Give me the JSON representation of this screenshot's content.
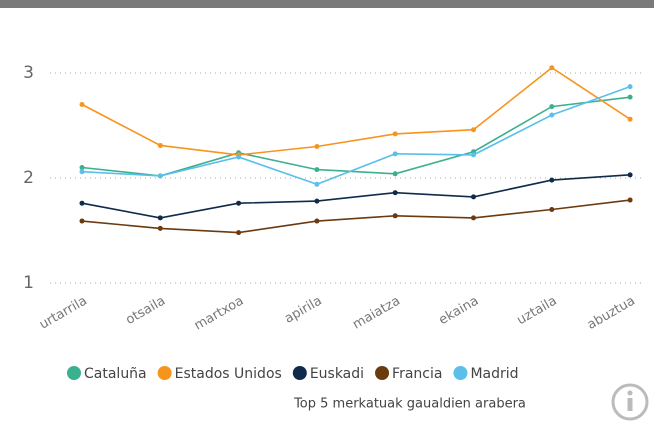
{
  "chart_data": {
    "type": "line",
    "subtitle": "Top 5 merkatuak gaualdien arabera",
    "categories": [
      "urtarrila",
      "otsaila",
      "martxoa",
      "apirila",
      "maiatza",
      "ekaina",
      "uztaila",
      "abuztua"
    ],
    "series": [
      {
        "name": "Cataluña",
        "color": "#3bb08f",
        "values": [
          2.1,
          2.02,
          2.24,
          2.08,
          2.04,
          2.25,
          2.68,
          2.77
        ]
      },
      {
        "name": "Estados Unidos",
        "color": "#f7941d",
        "values": [
          2.7,
          2.31,
          2.22,
          2.3,
          2.42,
          2.46,
          3.05,
          2.56
        ]
      },
      {
        "name": "Euskadi",
        "color": "#0f2a4a",
        "values": [
          1.76,
          1.62,
          1.76,
          1.78,
          1.86,
          1.82,
          1.98,
          2.03
        ]
      },
      {
        "name": "Francia",
        "color": "#6b3a0f",
        "values": [
          1.59,
          1.52,
          1.48,
          1.59,
          1.64,
          1.62,
          1.7,
          1.79
        ]
      },
      {
        "name": "Madrid",
        "color": "#5bbfea",
        "values": [
          2.06,
          2.02,
          2.2,
          1.94,
          2.23,
          2.22,
          2.6,
          2.87
        ]
      }
    ],
    "ylim": [
      1,
      3.3
    ],
    "yticks": [
      1,
      2,
      3
    ],
    "grid": true
  }
}
